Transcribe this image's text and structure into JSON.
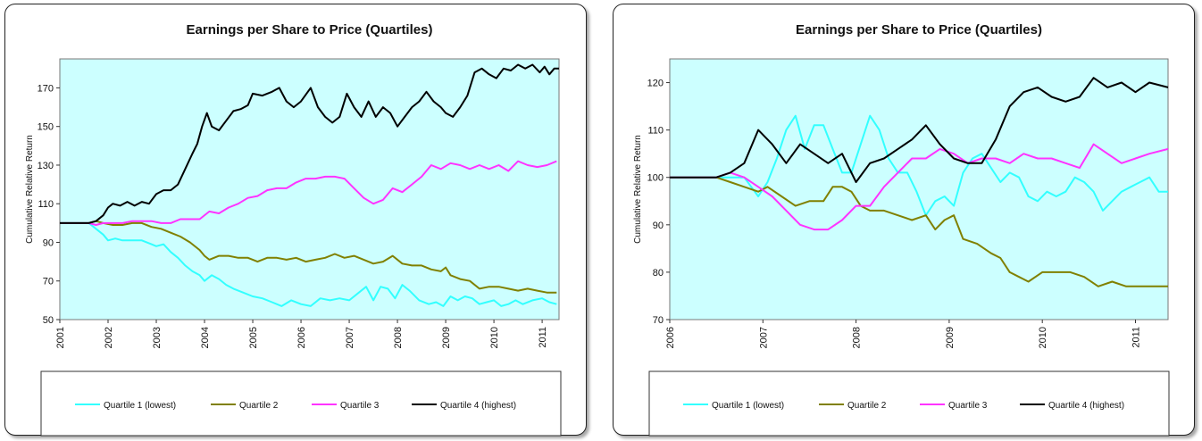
{
  "chart_data": [
    {
      "type": "line",
      "title": "Earnings per Share to Price (Quartiles)",
      "xlabel": "",
      "ylabel": "Cumulative Relative Return",
      "xlim": [
        2001,
        2011.35
      ],
      "ylim": [
        50,
        185
      ],
      "yticks": [
        50,
        70,
        90,
        110,
        130,
        150,
        170
      ],
      "xticks": [
        "2001",
        "2002",
        "2003",
        "2004",
        "2005",
        "2006",
        "2007",
        "2008",
        "2009",
        "2010",
        "2011"
      ],
      "legend_position": "bottom",
      "grid": false,
      "series": [
        {
          "name": "Quartile 1 (lowest)",
          "color": "#33ffff",
          "x": [
            2001,
            2001.6,
            2001.75,
            2001.9,
            2002.0,
            2002.15,
            2002.3,
            2002.5,
            2002.7,
            2002.9,
            2003.0,
            2003.15,
            2003.3,
            2003.45,
            2003.6,
            2003.75,
            2003.9,
            2004.0,
            2004.15,
            2004.3,
            2004.45,
            2004.6,
            2004.8,
            2005.0,
            2005.2,
            2005.4,
            2005.6,
            2005.8,
            2006.0,
            2006.2,
            2006.4,
            2006.6,
            2006.8,
            2007.0,
            2007.2,
            2007.35,
            2007.5,
            2007.65,
            2007.8,
            2007.95,
            2008.1,
            2008.25,
            2008.45,
            2008.65,
            2008.8,
            2008.95,
            2009.1,
            2009.25,
            2009.4,
            2009.55,
            2009.7,
            2009.85,
            2010.0,
            2010.15,
            2010.3,
            2010.45,
            2010.6,
            2010.8,
            2011.0,
            2011.15,
            2011.3
          ],
          "values": [
            100,
            100,
            97,
            94,
            91,
            92,
            91,
            91,
            91,
            89,
            88,
            89,
            85,
            82,
            78,
            75,
            73,
            70,
            73,
            71,
            68,
            66,
            64,
            62,
            61,
            59,
            57,
            60,
            58,
            57,
            61,
            60,
            61,
            60,
            64,
            67,
            60,
            67,
            66,
            61,
            68,
            65,
            60,
            58,
            59,
            57,
            62,
            60,
            62,
            61,
            58,
            59,
            60,
            57,
            58,
            60,
            58,
            60,
            61,
            59,
            58
          ]
        },
        {
          "name": "Quartile 2",
          "color": "#808000",
          "x": [
            2001,
            2001.6,
            2001.75,
            2001.9,
            2002.1,
            2002.3,
            2002.5,
            2002.7,
            2002.9,
            2003.1,
            2003.3,
            2003.5,
            2003.7,
            2003.9,
            2004.0,
            2004.1,
            2004.3,
            2004.5,
            2004.7,
            2004.9,
            2005.1,
            2005.3,
            2005.5,
            2005.7,
            2005.9,
            2006.1,
            2006.3,
            2006.5,
            2006.7,
            2006.9,
            2007.1,
            2007.3,
            2007.5,
            2007.7,
            2007.9,
            2008.1,
            2008.3,
            2008.5,
            2008.7,
            2008.9,
            2009.0,
            2009.1,
            2009.3,
            2009.5,
            2009.7,
            2009.9,
            2010.1,
            2010.3,
            2010.5,
            2010.7,
            2010.9,
            2011.1,
            2011.3
          ],
          "values": [
            100,
            100,
            101,
            100,
            99,
            99,
            100,
            100,
            98,
            97,
            95,
            93,
            90,
            86,
            83,
            81,
            83,
            83,
            82,
            82,
            80,
            82,
            82,
            81,
            82,
            80,
            81,
            82,
            84,
            82,
            83,
            81,
            79,
            80,
            83,
            79,
            78,
            78,
            76,
            75,
            77,
            73,
            71,
            70,
            66,
            67,
            67,
            66,
            65,
            66,
            65,
            64,
            64
          ]
        },
        {
          "name": "Quartile 3",
          "color": "#ff33ff",
          "x": [
            2001,
            2001.6,
            2001.75,
            2001.9,
            2002.1,
            2002.3,
            2002.5,
            2002.7,
            2002.9,
            2003.1,
            2003.3,
            2003.5,
            2003.7,
            2003.9,
            2004.1,
            2004.3,
            2004.5,
            2004.7,
            2004.9,
            2005.1,
            2005.3,
            2005.5,
            2005.7,
            2005.9,
            2006.1,
            2006.3,
            2006.5,
            2006.7,
            2006.9,
            2007.1,
            2007.3,
            2007.5,
            2007.7,
            2007.9,
            2008.1,
            2008.3,
            2008.5,
            2008.7,
            2008.9,
            2009.1,
            2009.3,
            2009.5,
            2009.7,
            2009.9,
            2010.1,
            2010.3,
            2010.5,
            2010.7,
            2010.9,
            2011.1,
            2011.3
          ],
          "values": [
            100,
            100,
            99,
            100,
            100,
            100,
            101,
            101,
            101,
            100,
            100,
            102,
            102,
            102,
            106,
            105,
            108,
            110,
            113,
            114,
            117,
            118,
            118,
            121,
            123,
            123,
            124,
            124,
            123,
            118,
            113,
            110,
            112,
            118,
            116,
            120,
            124,
            130,
            128,
            131,
            130,
            128,
            130,
            128,
            130,
            127,
            132,
            130,
            129,
            130,
            132
          ]
        },
        {
          "name": "Quartile 4 (highest)",
          "color": "#000000",
          "x": [
            2001,
            2001.6,
            2001.75,
            2001.9,
            2002.0,
            2002.1,
            2002.25,
            2002.4,
            2002.55,
            2002.7,
            2002.85,
            2003.0,
            2003.15,
            2003.3,
            2003.45,
            2003.6,
            2003.75,
            2003.85,
            2003.95,
            2004.05,
            2004.15,
            2004.3,
            2004.45,
            2004.6,
            2004.75,
            2004.9,
            2005.0,
            2005.2,
            2005.4,
            2005.55,
            2005.7,
            2005.85,
            2006.0,
            2006.2,
            2006.35,
            2006.5,
            2006.65,
            2006.8,
            2006.95,
            2007.1,
            2007.25,
            2007.4,
            2007.55,
            2007.7,
            2007.85,
            2008.0,
            2008.15,
            2008.3,
            2008.45,
            2008.6,
            2008.75,
            2008.9,
            2009.0,
            2009.15,
            2009.3,
            2009.45,
            2009.6,
            2009.75,
            2009.9,
            2010.05,
            2010.2,
            2010.35,
            2010.5,
            2010.65,
            2010.8,
            2010.95,
            2011.05,
            2011.15,
            2011.25,
            2011.35
          ],
          "values": [
            100,
            100,
            101,
            104,
            108,
            110,
            109,
            111,
            109,
            111,
            110,
            115,
            117,
            117,
            120,
            128,
            136,
            141,
            150,
            157,
            150,
            148,
            153,
            158,
            159,
            161,
            167,
            166,
            168,
            170,
            163,
            160,
            163,
            170,
            160,
            155,
            152,
            155,
            167,
            160,
            155,
            163,
            155,
            160,
            157,
            150,
            155,
            160,
            163,
            168,
            163,
            160,
            157,
            155,
            160,
            166,
            178,
            180,
            177,
            175,
            180,
            179,
            182,
            180,
            182,
            178,
            181,
            177,
            180,
            180
          ]
        }
      ]
    },
    {
      "type": "line",
      "title": "Earnings per Share to Price (Quartiles)",
      "xlabel": "",
      "ylabel": "Cumulative Relative Return",
      "xlim": [
        2006,
        2011.35
      ],
      "ylim": [
        70,
        125
      ],
      "yticks": [
        70,
        80,
        90,
        100,
        110,
        120
      ],
      "xticks": [
        "2006",
        "2007",
        "2008",
        "2009",
        "2010",
        "2011"
      ],
      "legend_position": "bottom",
      "grid": false,
      "series": [
        {
          "name": "Quartile 1 (lowest)",
          "color": "#33ffff",
          "x": [
            2006,
            2006.5,
            2006.65,
            2006.8,
            2006.95,
            2007.05,
            2007.15,
            2007.25,
            2007.35,
            2007.45,
            2007.55,
            2007.65,
            2007.75,
            2007.85,
            2007.95,
            2008.05,
            2008.15,
            2008.25,
            2008.35,
            2008.45,
            2008.55,
            2008.65,
            2008.75,
            2008.85,
            2008.95,
            2009.05,
            2009.15,
            2009.25,
            2009.35,
            2009.45,
            2009.55,
            2009.65,
            2009.75,
            2009.85,
            2009.95,
            2010.05,
            2010.15,
            2010.25,
            2010.35,
            2010.45,
            2010.55,
            2010.65,
            2010.75,
            2010.85,
            2010.95,
            2011.05,
            2011.15,
            2011.25,
            2011.35
          ],
          "values": [
            100,
            100,
            100,
            100,
            96,
            99,
            104,
            110,
            113,
            106,
            111,
            111,
            106,
            101,
            101,
            107,
            113,
            110,
            104,
            101,
            101,
            97,
            92,
            95,
            96,
            94,
            101,
            104,
            105,
            102,
            99,
            101,
            100,
            96,
            95,
            97,
            96,
            97,
            100,
            99,
            97,
            93,
            95,
            97,
            98,
            99,
            100,
            97,
            97
          ]
        },
        {
          "name": "Quartile 2",
          "color": "#808000",
          "x": [
            2006,
            2006.5,
            2006.65,
            2006.8,
            2006.95,
            2007.05,
            2007.2,
            2007.35,
            2007.5,
            2007.65,
            2007.75,
            2007.85,
            2007.95,
            2008.05,
            2008.15,
            2008.3,
            2008.45,
            2008.6,
            2008.75,
            2008.85,
            2008.95,
            2009.05,
            2009.15,
            2009.3,
            2009.45,
            2009.55,
            2009.65,
            2009.75,
            2009.85,
            2010.0,
            2010.15,
            2010.3,
            2010.45,
            2010.6,
            2010.75,
            2010.9,
            2011.05,
            2011.2,
            2011.35
          ],
          "values": [
            100,
            100,
            99,
            98,
            97,
            98,
            96,
            94,
            95,
            95,
            98,
            98,
            97,
            94,
            93,
            93,
            92,
            91,
            92,
            89,
            91,
            92,
            87,
            86,
            84,
            83,
            80,
            79,
            78,
            80,
            80,
            80,
            79,
            77,
            78,
            77,
            77,
            77,
            77
          ]
        },
        {
          "name": "Quartile 3",
          "color": "#ff33ff",
          "x": [
            2006,
            2006.5,
            2006.65,
            2006.8,
            2006.95,
            2007.1,
            2007.25,
            2007.4,
            2007.55,
            2007.7,
            2007.85,
            2008.0,
            2008.15,
            2008.3,
            2008.45,
            2008.6,
            2008.75,
            2008.9,
            2009.05,
            2009.2,
            2009.35,
            2009.5,
            2009.65,
            2009.8,
            2009.95,
            2010.1,
            2010.25,
            2010.4,
            2010.55,
            2010.7,
            2010.85,
            2011.0,
            2011.15,
            2011.35
          ],
          "values": [
            100,
            100,
            101,
            100,
            98,
            96,
            93,
            90,
            89,
            89,
            91,
            94,
            94,
            98,
            101,
            104,
            104,
            106,
            105,
            103,
            104,
            104,
            103,
            105,
            104,
            104,
            103,
            102,
            107,
            105,
            103,
            104,
            105,
            106
          ]
        },
        {
          "name": "Quartile 4 (highest)",
          "color": "#000000",
          "x": [
            2006,
            2006.5,
            2006.65,
            2006.8,
            2006.95,
            2007.1,
            2007.25,
            2007.4,
            2007.55,
            2007.7,
            2007.85,
            2008.0,
            2008.15,
            2008.3,
            2008.45,
            2008.6,
            2008.75,
            2008.9,
            2009.05,
            2009.2,
            2009.35,
            2009.5,
            2009.65,
            2009.8,
            2009.95,
            2010.1,
            2010.25,
            2010.4,
            2010.55,
            2010.7,
            2010.85,
            2011.0,
            2011.15,
            2011.35
          ],
          "values": [
            100,
            100,
            101,
            103,
            110,
            107,
            103,
            107,
            105,
            103,
            105,
            99,
            103,
            104,
            106,
            108,
            111,
            107,
            104,
            103,
            103,
            108,
            115,
            118,
            119,
            117,
            116,
            117,
            121,
            119,
            120,
            118,
            120,
            119
          ]
        }
      ]
    }
  ]
}
